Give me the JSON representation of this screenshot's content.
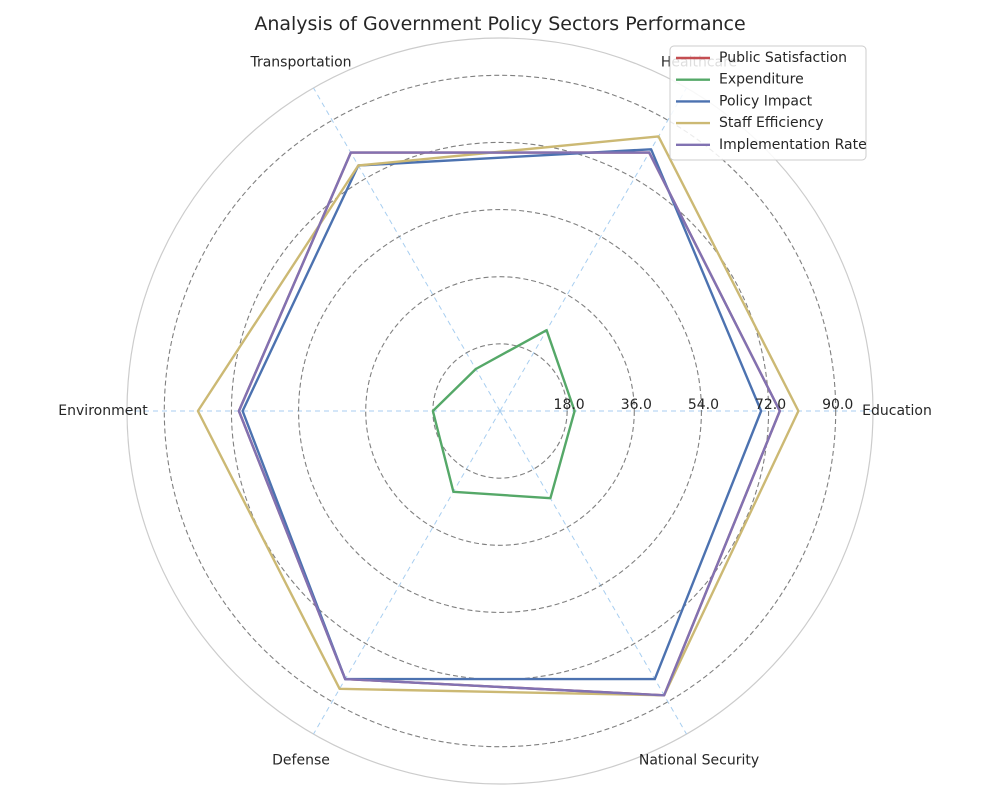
{
  "chart_data": {
    "type": "radar",
    "title": "Analysis of Government Policy Sectors Performance",
    "categories": [
      "Education",
      "Healthcare",
      "Transportation",
      "Environment",
      "Defense",
      "National Security"
    ],
    "radial_ticks": [
      "18.0",
      "36.0",
      "54.0",
      "72.0",
      "90.0"
    ],
    "rlim": [
      0,
      100
    ],
    "grid": true,
    "legend_position": "top-right",
    "series": [
      {
        "name": "Public Satisfaction",
        "color": "#c44e52",
        "values": [
          75,
          80,
          80,
          70,
          83,
          88
        ]
      },
      {
        "name": "Expenditure",
        "color": "#55a868",
        "values": [
          20,
          25,
          13,
          18,
          25,
          27
        ]
      },
      {
        "name": "Policy Impact",
        "color": "#4c72b0",
        "values": [
          70,
          81,
          76,
          69,
          83,
          83
        ]
      },
      {
        "name": "Staff Efficiency",
        "color": "#ccb974",
        "values": [
          80,
          85,
          76,
          81,
          86,
          88
        ]
      },
      {
        "name": "Implementation Rate",
        "color": "#8172b2",
        "values": [
          75,
          80,
          80,
          70,
          83,
          88
        ]
      }
    ]
  }
}
